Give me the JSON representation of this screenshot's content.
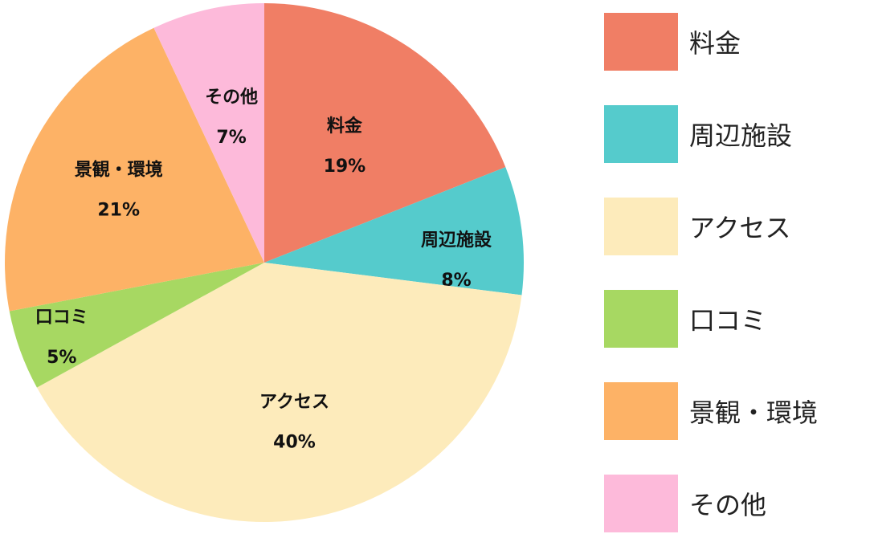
{
  "chart_data": {
    "type": "pie",
    "slices": [
      {
        "label": "料金",
        "value": 19,
        "value_label": "19%",
        "color": "#F07E65"
      },
      {
        "label": "周辺施設",
        "value": 8,
        "value_label": "8%",
        "color": "#55CBCC"
      },
      {
        "label": "アクセス",
        "value": 40,
        "value_label": "40%",
        "color": "#FDEBBB"
      },
      {
        "label": "口コミ",
        "value": 5,
        "value_label": "5%",
        "color": "#A7D862"
      },
      {
        "label": "景観・環境",
        "value": 21,
        "value_label": "21%",
        "color": "#FDB266"
      },
      {
        "label": "その他",
        "value": 7,
        "value_label": "7%",
        "color": "#FDBADA"
      }
    ],
    "start": "12 o'clock",
    "direction": "clockwise",
    "legend_position": "right",
    "slice_labels": [
      "料金",
      "周辺施設",
      "アクセス",
      "口コミ",
      "景観・環境",
      "その他"
    ],
    "legend_labels": [
      "料金",
      "周辺施設",
      "アクセス",
      "口コミ",
      "景観・環境",
      "その他"
    ]
  }
}
